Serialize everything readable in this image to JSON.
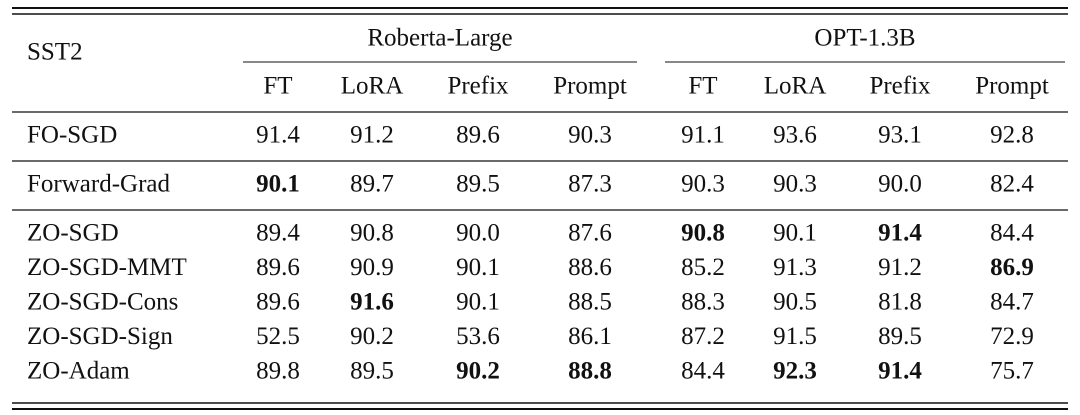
{
  "table": {
    "corner": "SST2",
    "groups": [
      {
        "name": "Roberta-Large",
        "columns": [
          "FT",
          "LoRA",
          "Prefix",
          "Prompt"
        ]
      },
      {
        "name": "OPT-1.3B",
        "columns": [
          "FT",
          "LoRA",
          "Prefix",
          "Prompt"
        ]
      }
    ],
    "sections": [
      [
        {
          "label": "FO-SGD",
          "cells": [
            "91.4",
            "91.2",
            "89.6",
            "90.3",
            "91.1",
            "93.6",
            "93.1",
            "92.8"
          ],
          "bold": []
        }
      ],
      [
        {
          "label": "Forward-Grad",
          "cells": [
            "90.1",
            "89.7",
            "89.5",
            "87.3",
            "90.3",
            "90.3",
            "90.0",
            "82.4"
          ],
          "bold": [
            0
          ]
        }
      ],
      [
        {
          "label": "ZO-SGD",
          "cells": [
            "89.4",
            "90.8",
            "90.0",
            "87.6",
            "90.8",
            "90.1",
            "91.4",
            "84.4"
          ],
          "bold": [
            4,
            6
          ]
        },
        {
          "label": "ZO-SGD-MMT",
          "cells": [
            "89.6",
            "90.9",
            "90.1",
            "88.6",
            "85.2",
            "91.3",
            "91.2",
            "86.9"
          ],
          "bold": [
            7
          ]
        },
        {
          "label": "ZO-SGD-Cons",
          "cells": [
            "89.6",
            "91.6",
            "90.1",
            "88.5",
            "88.3",
            "90.5",
            "81.8",
            "84.7"
          ],
          "bold": [
            1
          ]
        },
        {
          "label": "ZO-SGD-Sign",
          "cells": [
            "52.5",
            "90.2",
            "53.6",
            "86.1",
            "87.2",
            "91.5",
            "89.5",
            "72.9"
          ],
          "bold": []
        },
        {
          "label": "ZO-Adam",
          "cells": [
            "89.8",
            "89.5",
            "90.2",
            "88.8",
            "84.4",
            "92.3",
            "91.4",
            "75.7"
          ],
          "bold": [
            2,
            3,
            5,
            6
          ]
        }
      ]
    ]
  }
}
